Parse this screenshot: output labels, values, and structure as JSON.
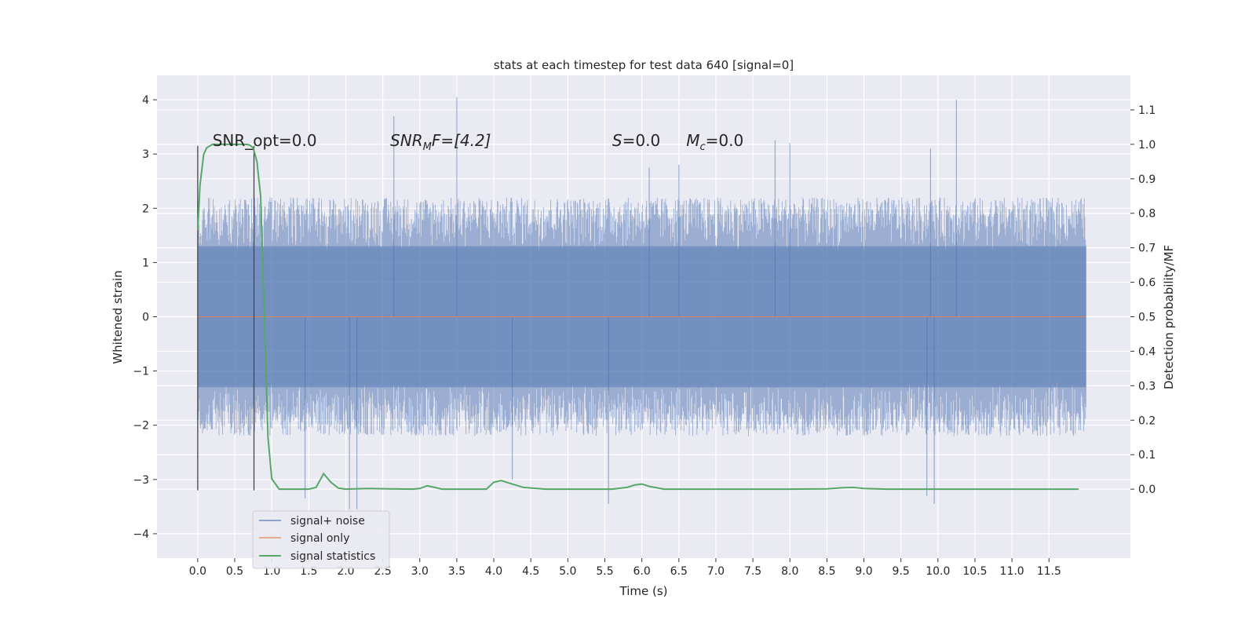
{
  "chart_data": {
    "type": "line",
    "title": "stats at each timestep for test data 640 [signal=0]",
    "xlabel": "Time (s)",
    "ylabel_left": "Whitened strain",
    "ylabel_right": "Detection probability/MF",
    "xlim": [
      -0.55,
      12.6
    ],
    "ylim_left": [
      -4.45,
      4.45
    ],
    "ylim_right": [
      -0.2,
      1.2
    ],
    "x_ticks": [
      0.0,
      0.5,
      1.0,
      1.5,
      2.0,
      2.5,
      3.0,
      3.5,
      4.0,
      4.5,
      5.0,
      5.5,
      6.0,
      6.5,
      7.0,
      7.5,
      8.0,
      8.5,
      9.0,
      9.5,
      10.0,
      10.5,
      11.0,
      11.5
    ],
    "x_tick_labels": [
      "0.0",
      "0.5",
      "1.0",
      "1.5",
      "2.0",
      "2.5",
      "3.0",
      "3.5",
      "4.0",
      "4.5",
      "5.0",
      "5.5",
      "6.0",
      "6.5",
      "7.0",
      "7.5",
      "8.0",
      "8.5",
      "9.0",
      "9.5",
      "10.0",
      "10.5",
      "11.0",
      "11.5"
    ],
    "y_left_ticks": [
      -4,
      -3,
      -2,
      -1,
      0,
      1,
      2,
      3,
      4
    ],
    "y_left_tick_labels": [
      "−4",
      "−3",
      "−2",
      "−1",
      "0",
      "1",
      "2",
      "3",
      "4"
    ],
    "y_right_ticks": [
      0.0,
      0.1,
      0.2,
      0.3,
      0.4,
      0.5,
      0.6,
      0.7,
      0.8,
      0.9,
      1.0,
      1.1
    ],
    "y_right_tick_labels": [
      "0.0",
      "0.1",
      "0.2",
      "0.3",
      "0.4",
      "0.5",
      "0.6",
      "0.7",
      "0.8",
      "0.9",
      "1.0",
      "1.1"
    ],
    "grid": true,
    "legend_placement": "lower-left",
    "series": [
      {
        "name": "signal+ noise",
        "axis": "left",
        "color": "#4c72b0",
        "style": "noise-band",
        "x_range": [
          0.0,
          12.0
        ],
        "core_range": [
          -1.3,
          1.3
        ],
        "typical_extent": [
          -2.2,
          2.2
        ],
        "peaks": [
          {
            "x": 3.5,
            "y": 4.05
          },
          {
            "x": 10.25,
            "y": 4.0
          },
          {
            "x": 2.65,
            "y": 3.7
          },
          {
            "x": 8.0,
            "y": 3.2
          },
          {
            "x": 7.8,
            "y": 3.25
          },
          {
            "x": 9.9,
            "y": 3.1
          },
          {
            "x": 2.05,
            "y": -3.55
          },
          {
            "x": 2.15,
            "y": -3.55
          },
          {
            "x": 5.55,
            "y": -3.45
          },
          {
            "x": 9.95,
            "y": -3.45
          },
          {
            "x": 1.45,
            "y": -3.35
          },
          {
            "x": 9.85,
            "y": -3.3
          },
          {
            "x": 6.1,
            "y": 2.75
          },
          {
            "x": 6.5,
            "y": 2.8
          },
          {
            "x": 4.25,
            "y": -3.0
          }
        ]
      },
      {
        "name": "signal only",
        "axis": "left",
        "color": "#dd8452",
        "x": [
          0.0,
          12.0
        ],
        "y": [
          0.0,
          0.0
        ]
      },
      {
        "name": "signal statistics",
        "axis": "right",
        "color": "#55a868",
        "x": [
          0.0,
          0.03,
          0.08,
          0.12,
          0.2,
          0.3,
          0.4,
          0.5,
          0.6,
          0.65,
          0.7,
          0.75,
          0.8,
          0.85,
          0.9,
          0.95,
          1.0,
          1.1,
          1.2,
          1.4,
          1.5,
          1.6,
          1.7,
          1.8,
          1.9,
          2.0,
          2.3,
          2.6,
          2.9,
          3.0,
          3.1,
          3.2,
          3.3,
          3.6,
          3.9,
          4.0,
          4.1,
          4.2,
          4.4,
          4.7,
          5.0,
          5.3,
          5.6,
          5.8,
          5.9,
          6.0,
          6.1,
          6.3,
          6.6,
          7.0,
          8.0,
          8.5,
          8.7,
          8.85,
          9.0,
          9.3,
          9.6,
          10.0,
          11.0,
          11.9
        ],
        "y": [
          0.75,
          0.88,
          0.97,
          0.99,
          1.0,
          1.0,
          1.0,
          1.0,
          1.0,
          1.0,
          0.998,
          0.99,
          0.95,
          0.85,
          0.5,
          0.15,
          0.03,
          0.0,
          0.0,
          0.0,
          0.0,
          0.005,
          0.045,
          0.02,
          0.003,
          0.0,
          0.002,
          0.001,
          0.0,
          0.002,
          0.01,
          0.005,
          0.0,
          0.0,
          0.0,
          0.02,
          0.025,
          0.018,
          0.005,
          0.0,
          0.0,
          0.0,
          0.0,
          0.005,
          0.012,
          0.015,
          0.008,
          0.0,
          0.0,
          0.0,
          0.0,
          0.001,
          0.004,
          0.005,
          0.002,
          0.0,
          0.0,
          0.0,
          0.0,
          0.0
        ]
      }
    ],
    "vertical_lines": [
      {
        "x": 0.0,
        "axis": "left",
        "y_range": [
          -3.2,
          3.15
        ],
        "color": "#444444"
      },
      {
        "x": 0.76,
        "axis": "left",
        "y_range": [
          -3.2,
          3.15
        ],
        "color": "#444444"
      }
    ],
    "annotations": [
      {
        "x": 0.2,
        "y": 3.15,
        "text": "SNR_opt=0.0",
        "axis": "left"
      },
      {
        "x": 2.6,
        "y": 3.15,
        "text": "",
        "axis": "left",
        "parts": [
          "SNR",
          "M",
          "F=[4.2]"
        ]
      },
      {
        "x": 5.6,
        "y": 3.15,
        "text": "",
        "axis": "left",
        "parts": [
          "S",
          "=0.0"
        ]
      },
      {
        "x": 6.6,
        "y": 3.15,
        "text": "",
        "axis": "left",
        "parts": [
          "M",
          "c",
          "=0.0"
        ]
      }
    ]
  }
}
